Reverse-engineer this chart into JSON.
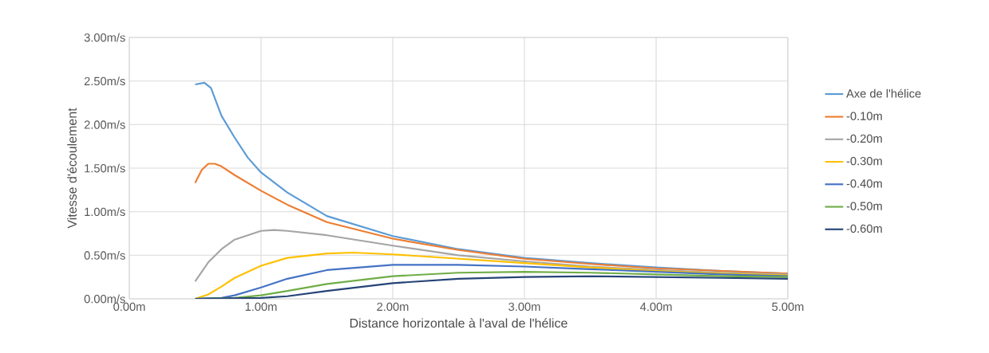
{
  "chart_data": {
    "type": "line",
    "xlabel": "Distance horizontale à l'aval de l'hélice",
    "ylabel": "Vitesse d'écoulement",
    "xlim": [
      0,
      5
    ],
    "ylim": [
      0,
      3
    ],
    "xticks": [
      {
        "value": 0,
        "label": "0.00m"
      },
      {
        "value": 1,
        "label": "1.00m"
      },
      {
        "value": 2,
        "label": "2.00m"
      },
      {
        "value": 3,
        "label": "3.00m"
      },
      {
        "value": 4,
        "label": "4.00m"
      },
      {
        "value": 5,
        "label": "5.00m"
      }
    ],
    "yticks": [
      {
        "value": 0,
        "label": "0.00m/s"
      },
      {
        "value": 0.5,
        "label": "0.50m/s"
      },
      {
        "value": 1,
        "label": "1.00m/s"
      },
      {
        "value": 1.5,
        "label": "1.50m/s"
      },
      {
        "value": 2,
        "label": "2.00m/s"
      },
      {
        "value": 2.5,
        "label": "2.50m/s"
      },
      {
        "value": 3,
        "label": "3.00m/s"
      }
    ],
    "grid": true,
    "legend": "right",
    "marker": "none",
    "line_style": "solid",
    "series": [
      {
        "name": "Axe de l'hélice",
        "color": "#5b9bd5",
        "x": [
          0.5,
          0.57,
          0.62,
          0.7,
          0.8,
          0.9,
          1.0,
          1.2,
          1.5,
          2.0,
          2.5,
          3.0,
          3.5,
          4.0,
          4.5,
          5.0
        ],
        "values": [
          2.46,
          2.48,
          2.42,
          2.1,
          1.85,
          1.62,
          1.45,
          1.22,
          0.95,
          0.72,
          0.57,
          0.47,
          0.41,
          0.36,
          0.32,
          0.29
        ]
      },
      {
        "name": "-0.10m",
        "color": "#ed7d31",
        "x": [
          0.5,
          0.55,
          0.6,
          0.65,
          0.7,
          0.8,
          1.0,
          1.2,
          1.5,
          2.0,
          2.5,
          3.0,
          3.5,
          4.0,
          4.5,
          5.0
        ],
        "values": [
          1.33,
          1.48,
          1.55,
          1.55,
          1.52,
          1.42,
          1.24,
          1.08,
          0.88,
          0.69,
          0.56,
          0.46,
          0.4,
          0.35,
          0.32,
          0.29
        ]
      },
      {
        "name": "-0.20m",
        "color": "#a5a5a5",
        "x": [
          0.5,
          0.6,
          0.7,
          0.8,
          1.0,
          1.1,
          1.2,
          1.5,
          2.0,
          2.5,
          3.0,
          3.5,
          4.0,
          4.5,
          5.0
        ],
        "values": [
          0.2,
          0.42,
          0.57,
          0.68,
          0.78,
          0.79,
          0.78,
          0.73,
          0.61,
          0.5,
          0.43,
          0.37,
          0.33,
          0.3,
          0.28
        ]
      },
      {
        "name": "-0.30m",
        "color": "#ffc000",
        "x": [
          0.5,
          0.6,
          0.7,
          0.8,
          1.0,
          1.2,
          1.5,
          1.7,
          2.0,
          2.5,
          3.0,
          3.5,
          4.0,
          4.5,
          5.0
        ],
        "values": [
          0,
          0.05,
          0.14,
          0.24,
          0.38,
          0.47,
          0.52,
          0.53,
          0.51,
          0.46,
          0.41,
          0.36,
          0.32,
          0.29,
          0.27
        ]
      },
      {
        "name": "-0.40m",
        "color": "#4472c4",
        "x": [
          0.5,
          0.7,
          0.8,
          1.0,
          1.2,
          1.5,
          2.0,
          2.5,
          3.0,
          3.5,
          4.0,
          4.5,
          5.0
        ],
        "values": [
          0,
          0.01,
          0.04,
          0.13,
          0.23,
          0.33,
          0.39,
          0.39,
          0.37,
          0.34,
          0.31,
          0.28,
          0.26
        ]
      },
      {
        "name": "-0.50m",
        "color": "#70ad47",
        "x": [
          0.5,
          0.8,
          1.0,
          1.2,
          1.5,
          2.0,
          2.5,
          3.0,
          3.5,
          4.0,
          4.5,
          5.0
        ],
        "values": [
          0,
          0.01,
          0.04,
          0.09,
          0.17,
          0.26,
          0.3,
          0.31,
          0.3,
          0.28,
          0.26,
          0.25
        ]
      },
      {
        "name": "-0.60m",
        "color": "#264478",
        "x": [
          0.5,
          1.0,
          1.2,
          1.5,
          2.0,
          2.5,
          3.0,
          3.5,
          4.0,
          4.5,
          5.0
        ],
        "values": [
          0,
          0.01,
          0.03,
          0.09,
          0.18,
          0.23,
          0.25,
          0.26,
          0.25,
          0.24,
          0.23
        ]
      }
    ]
  }
}
